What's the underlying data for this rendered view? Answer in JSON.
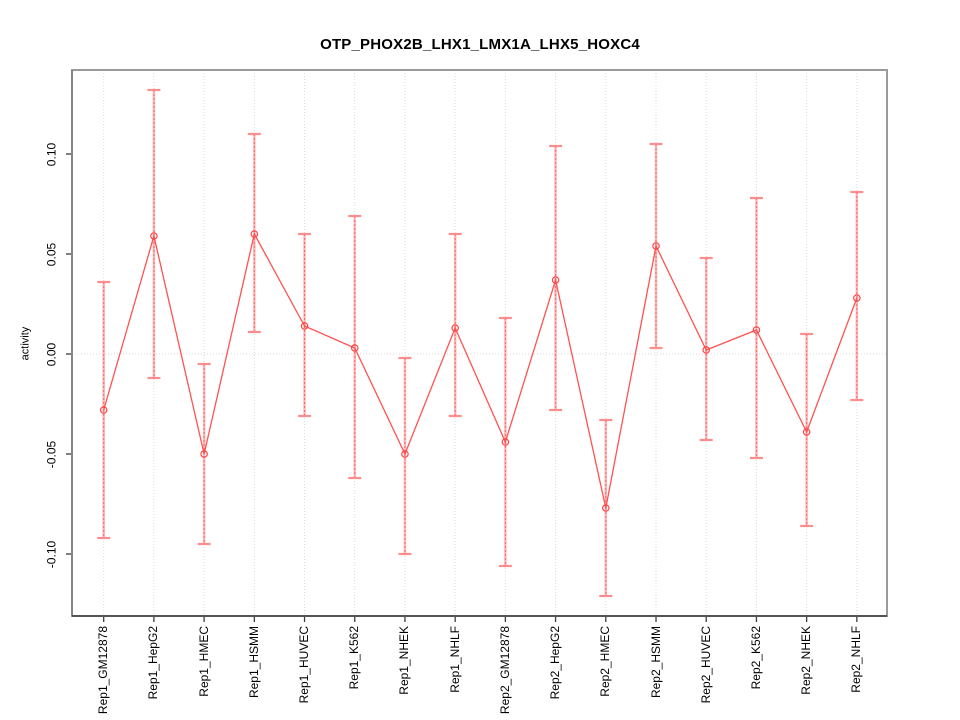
{
  "page": {
    "background": "#ffffff"
  },
  "chart_data": {
    "type": "line",
    "title": "OTP_PHOX2B_LHX1_LMX1A_LHX5_HOXC4",
    "xlabel": "",
    "ylabel": "activity",
    "categories": [
      "Rep1_GM12878",
      "Rep1_HepG2",
      "Rep1_HMEC",
      "Rep1_HSMM",
      "Rep1_HUVEC",
      "Rep1_K562",
      "Rep1_NHEK",
      "Rep1_NHLF",
      "Rep2_GM12878",
      "Rep2_HepG2",
      "Rep2_HMEC",
      "Rep2_HSMM",
      "Rep2_HUVEC",
      "Rep2_K562",
      "Rep2_NHEK",
      "Rep2_NHLF"
    ],
    "series": [
      {
        "name": "activity",
        "values": [
          -0.028,
          0.059,
          -0.05,
          0.06,
          0.014,
          0.003,
          -0.05,
          0.013,
          -0.044,
          0.037,
          -0.077,
          0.054,
          0.002,
          0.012,
          -0.039,
          0.028
        ],
        "error_upper": [
          0.036,
          0.132,
          -0.005,
          0.11,
          0.06,
          0.069,
          -0.002,
          0.06,
          0.018,
          0.104,
          -0.033,
          0.105,
          0.048,
          0.078,
          0.01,
          0.081
        ],
        "error_lower": [
          -0.092,
          -0.012,
          -0.095,
          0.011,
          -0.031,
          -0.062,
          -0.1,
          -0.031,
          -0.106,
          -0.028,
          -0.121,
          0.003,
          -0.043,
          -0.052,
          -0.086,
          -0.023
        ]
      }
    ],
    "yticks": [
      -0.1,
      -0.05,
      0.0,
      0.05,
      0.1
    ],
    "ytick_labels": [
      "-0.10",
      "-0.05",
      "0.00",
      "0.05",
      "0.10"
    ],
    "ylim": [
      -0.131,
      0.142
    ],
    "zero_line": true,
    "vertical_gridlines": true,
    "horizontal_gridlines": false,
    "legend": "none",
    "marker": "open-circle",
    "error_bars": true
  },
  "colors": {
    "series_line": "#ff5252",
    "marker_stroke": "#ff4242",
    "error_stem": "#ffb3b3",
    "error_stem_dash": "#ff6666",
    "error_cap": "#ff8c8c",
    "gridline": "#dadada",
    "frame": "#9a9a9a",
    "y_axis_line": "#787878",
    "axis_line": "#3c3c3c",
    "text": "#000000",
    "background": "#ffffff"
  }
}
